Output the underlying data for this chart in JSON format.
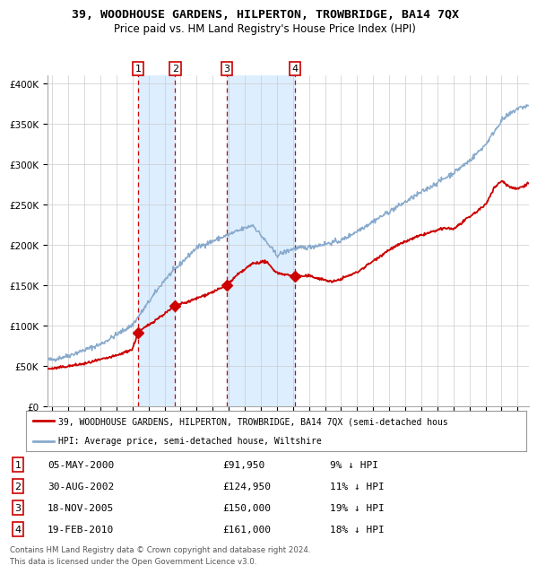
{
  "title": "39, WOODHOUSE GARDENS, HILPERTON, TROWBRIDGE, BA14 7QX",
  "subtitle": "Price paid vs. HM Land Registry's House Price Index (HPI)",
  "legend_line1": "39, WOODHOUSE GARDENS, HILPERTON, TROWBRIDGE, BA14 7QX (semi-detached hous",
  "legend_line2": "HPI: Average price, semi-detached house, Wiltshire",
  "footer_line1": "Contains HM Land Registry data © Crown copyright and database right 2024.",
  "footer_line2": "This data is licensed under the Open Government Licence v3.0.",
  "sales": [
    {
      "num": 1,
      "date": "05-MAY-2000",
      "price": 91950,
      "pct": "9%",
      "dir": "↓",
      "x_year": 2000.35
    },
    {
      "num": 2,
      "date": "30-AUG-2002",
      "price": 124950,
      "pct": "11%",
      "dir": "↓",
      "x_year": 2002.66
    },
    {
      "num": 3,
      "date": "18-NOV-2005",
      "price": 150000,
      "pct": "19%",
      "dir": "↓",
      "x_year": 2005.88
    },
    {
      "num": 4,
      "date": "19-FEB-2010",
      "price": 161000,
      "pct": "18%",
      "dir": "↓",
      "x_year": 2010.13
    }
  ],
  "red_line_color": "#cc0000",
  "blue_line_color": "#88aacc",
  "shade_color": "#ddeeff",
  "dashed_line_color": "#cc0000",
  "grid_color": "#cccccc",
  "sale_marker_color": "#cc0000",
  "box_color": "#cc0000",
  "ylim": [
    0,
    410000
  ],
  "yticks": [
    0,
    50000,
    100000,
    150000,
    200000,
    250000,
    300000,
    350000,
    400000
  ],
  "xlim_start": 1994.7,
  "xlim_end": 2024.7
}
